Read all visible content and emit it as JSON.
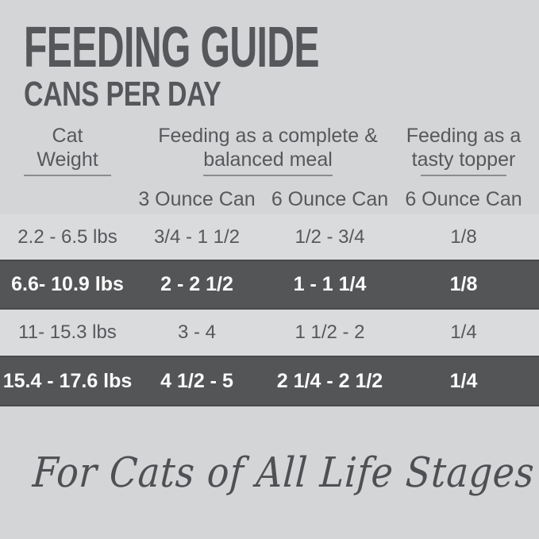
{
  "page": {
    "title": "FEEDING GUIDE",
    "subtitle": "CANS PER DAY",
    "footer_script": "For Cats of All Life Stages"
  },
  "table": {
    "col_groups": [
      {
        "line1": "Cat",
        "line2": "Weight"
      },
      {
        "line1": "Feeding as a complete &",
        "line2": "balanced meal"
      },
      {
        "line1": "Feeding as a",
        "line2": "tasty topper"
      }
    ],
    "sub_headers": [
      "3 Ounce Can",
      "6 Ounce Can",
      "6 Ounce Can"
    ],
    "rows": [
      {
        "weight": "2.2 - 6.5 lbs",
        "meal_3oz": "3/4 - 1 1/2",
        "meal_6oz": "1/2 - 3/4",
        "topper_6oz": "1/8",
        "highlight": false
      },
      {
        "weight": "6.6- 10.9 lbs",
        "meal_3oz": "2 - 2 1/2",
        "meal_6oz": "1 - 1 1/4",
        "topper_6oz": "1/8",
        "highlight": true
      },
      {
        "weight": "11- 15.3 lbs",
        "meal_3oz": "3 - 4",
        "meal_6oz": "1 1/2 - 2",
        "topper_6oz": "1/4",
        "highlight": false
      },
      {
        "weight": "15.4 - 17.6 lbs",
        "meal_3oz": "4 1/2 - 5",
        "meal_6oz": "2 1/4 - 2 1/2",
        "topper_6oz": "1/4",
        "highlight": true
      }
    ]
  },
  "colors": {
    "bg": "#d4d5d7",
    "rowLight": "#dadbdd",
    "rowDark": "#545557",
    "inkDark": "#56575a",
    "inkBody": "#57585b",
    "inkWhite": "#fbfbfb",
    "underline": "#8b8c8f",
    "script": "#4f5053"
  }
}
